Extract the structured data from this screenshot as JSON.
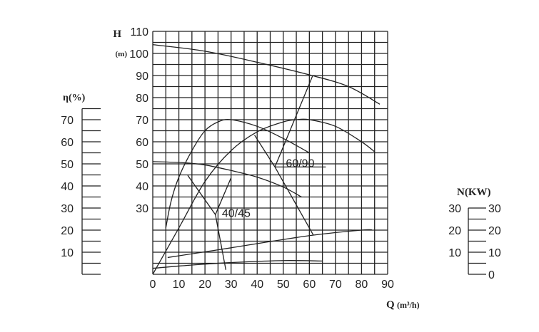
{
  "chart_data": {
    "type": "line",
    "x_axis": {
      "label": "Q",
      "unit": "(m³/h)",
      "range": [
        0,
        90
      ],
      "ticks": [
        0,
        10,
        20,
        30,
        40,
        50,
        60,
        70,
        80,
        90
      ],
      "grid_step": 5
    },
    "head_axis": {
      "label": "H",
      "unit": "(m)",
      "range": [
        0,
        110
      ],
      "ticks": [
        30,
        40,
        50,
        60,
        70,
        80,
        90,
        100,
        110
      ],
      "grid_step": 5
    },
    "efficiency_axis": {
      "label": "η(%)",
      "range": [
        0,
        75
      ],
      "ticks": [
        10,
        20,
        30,
        40,
        50,
        60,
        70
      ],
      "minor_step": 5
    },
    "power_axis": {
      "label": "N(KW)",
      "range": [
        0,
        30
      ],
      "left_ticks": [
        10,
        20,
        30
      ],
      "right_ticks": [
        0,
        10,
        20,
        30
      ],
      "minor_step": 5
    },
    "grid": true,
    "series": [
      {
        "name": "60/90",
        "kind": "head",
        "points": [
          [
            0,
            104
          ],
          [
            20,
            101
          ],
          [
            40,
            96
          ],
          [
            61,
            90
          ],
          [
            75,
            85
          ],
          [
            87,
            77
          ]
        ]
      },
      {
        "name": "40/45",
        "kind": "head",
        "points": [
          [
            0,
            51
          ],
          [
            12,
            50.5
          ],
          [
            20,
            49.5
          ],
          [
            30,
            47
          ],
          [
            40,
            44
          ],
          [
            50,
            39.5
          ],
          [
            57,
            35
          ]
        ]
      },
      {
        "name": "40/45",
        "kind": "efficiency",
        "points": [
          [
            5,
            21
          ],
          [
            7,
            33
          ],
          [
            10,
            44
          ],
          [
            15,
            56
          ],
          [
            20,
            65
          ],
          [
            25,
            69
          ],
          [
            30,
            70
          ],
          [
            40,
            67
          ],
          [
            50,
            61.5
          ],
          [
            60,
            55
          ]
        ]
      },
      {
        "name": "60/90",
        "kind": "efficiency",
        "points": [
          [
            0,
            0
          ],
          [
            10,
            21
          ],
          [
            20,
            42
          ],
          [
            30,
            56
          ],
          [
            40,
            64.5
          ],
          [
            50,
            69
          ],
          [
            55,
            70
          ],
          [
            60,
            70
          ],
          [
            70,
            67
          ],
          [
            80,
            60
          ],
          [
            85,
            55.5
          ]
        ]
      },
      {
        "name": "60/90",
        "kind": "power",
        "points": [
          [
            5.7,
            7.6
          ],
          [
            30,
            12
          ],
          [
            60,
            17.5
          ],
          [
            80,
            20
          ],
          [
            84,
            20.1
          ]
        ]
      },
      {
        "name": "40/45",
        "kind": "power",
        "points": [
          [
            0,
            2.7
          ],
          [
            15,
            4.2
          ],
          [
            30,
            5.3
          ],
          [
            50,
            6.2
          ],
          [
            65,
            6
          ]
        ]
      }
    ],
    "annotations": [
      {
        "text": "40/45",
        "at": [
          26.5,
          26
        ],
        "leaders": [
          [
            [
              13.4,
              44.8
            ],
            [
              24,
              27
            ],
            [
              30,
              43.7
            ]
          ],
          [
            [
              24,
              27
            ],
            [
              28,
              2
            ]
          ]
        ]
      },
      {
        "text": "60/90",
        "at": [
          51,
          48.5
        ],
        "leaders": [
          [
            [
              39,
              63
            ],
            [
              46.8,
              48.6
            ],
            [
              61.5,
              17.8
            ]
          ],
          [
            [
              46.8,
              48.6
            ],
            [
              61.2,
              89.7
            ]
          ],
          [
            [
              46.8,
              48.6
            ],
            [
              66.3,
              48.6
            ]
          ]
        ]
      }
    ]
  }
}
